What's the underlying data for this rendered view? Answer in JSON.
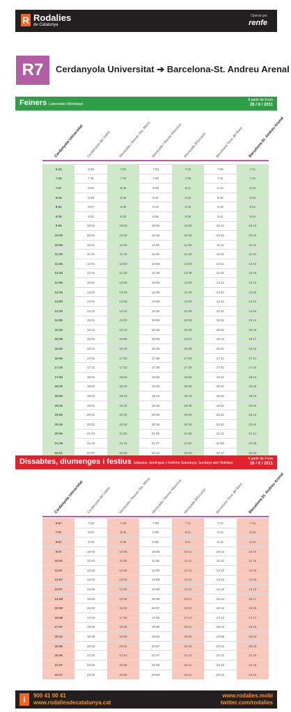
{
  "brand": {
    "name": "Rodalies",
    "sub": "de Catalunya",
    "logo_letter": "R",
    "operator_label": "Operat per",
    "operator": "renfe"
  },
  "route": {
    "code": "R7",
    "title": "Cerdanyola Universitat ➔ Barcelona-St. Andreu Arenal",
    "color": "#b25da6"
  },
  "stations": [
    "Cerdanyola Universitat",
    "Cerdanyola del Vallès",
    "Montcada i Reixac-Sta. Maria",
    "Montcada i Reixac-Manresa",
    "Montcada Bifurcació",
    "Barcelona-Torre del Baró",
    "Barcelona-St. Andreu Arenal"
  ],
  "weekday": {
    "title": "Feiners",
    "subtitle": "Laborables Weekdays",
    "from_label": "A partir de  From",
    "from_date": "26 / 6 / 2011",
    "color": "#2f9e47",
    "rows": [
      [
        "6:33",
        "6:38",
        "7:00",
        "7:03",
        "7:06",
        "7:08",
        "7:11"
      ],
      [
        "7:25",
        "7:31",
        "7:33",
        "7:36",
        "7:39",
        "7:41",
        "7:44"
      ],
      [
        "7:57",
        "8:02",
        "8:05",
        "8:08",
        "8:11",
        "8:13",
        "8:16"
      ],
      [
        "8:25",
        "8:30",
        "8:36",
        "8:41",
        "8:44",
        "8:46",
        "8:49"
      ],
      [
        "8:51",
        "8:57",
        "9:09",
        "9:13",
        "9:15",
        "9:18",
        "9:21"
      ],
      [
        "9:25",
        "9:31",
        "9:33",
        "9:36",
        "9:39",
        "9:41",
        "9:44"
      ],
      [
        "9:55",
        "10:01",
        "10:03",
        "10:06",
        "10:09",
        "10:11",
        "10:14"
      ],
      [
        "10:25",
        "10:31",
        "10:33",
        "10:36",
        "10:39",
        "10:41",
        "10:44"
      ],
      [
        "10:55",
        "11:01",
        "11:03",
        "11:06",
        "11:09",
        "11:11",
        "11:14"
      ],
      [
        "11:25",
        "11:31",
        "11:33",
        "11:36",
        "11:39",
        "11:41",
        "11:44"
      ],
      [
        "11:55",
        "12:01",
        "12:03",
        "12:06",
        "12:09",
        "12:11",
        "12:14"
      ],
      [
        "12:25",
        "12:31",
        "12:33",
        "12:36",
        "12:39",
        "12:41",
        "12:44"
      ],
      [
        "12:55",
        "13:01",
        "13:03",
        "13:06",
        "13:09",
        "13:11",
        "13:14"
      ],
      [
        "13:25",
        "13:31",
        "13:33",
        "13:36",
        "13:39",
        "13:41",
        "13:44"
      ],
      [
        "13:55",
        "14:01",
        "14:03",
        "14:06",
        "14:09",
        "14:11",
        "14:14"
      ],
      [
        "14:25",
        "14:31",
        "14:33",
        "14:36",
        "14:39",
        "14:41",
        "14:44"
      ],
      [
        "14:55",
        "15:01",
        "15:03",
        "15:06",
        "15:09",
        "15:11",
        "15:14"
      ],
      [
        "15:25",
        "15:31",
        "15:33",
        "15:36",
        "15:39",
        "15:41",
        "15:44"
      ],
      [
        "15:58",
        "16:04",
        "16:06",
        "16:09",
        "16:12",
        "16:14",
        "16:17"
      ],
      [
        "16:25",
        "16:31",
        "16:33",
        "16:36",
        "16:39",
        "16:41",
        "16:44"
      ],
      [
        "16:55",
        "17:01",
        "17:03",
        "17:06",
        "17:09",
        "17:11",
        "17:14"
      ],
      [
        "17:25",
        "17:31",
        "17:33",
        "17:36",
        "17:39",
        "17:41",
        "17:44"
      ],
      [
        "17:55",
        "18:01",
        "18:03",
        "18:06",
        "18:08",
        "18:11",
        "18:14"
      ],
      [
        "18:25",
        "18:31",
        "18:33",
        "18:36",
        "18:38",
        "18:41",
        "18:44"
      ],
      [
        "18:55",
        "19:01",
        "19:13",
        "19:16",
        "19:19",
        "19:21",
        "19:24"
      ],
      [
        "19:25",
        "19:31",
        "19:33",
        "19:36",
        "19:39",
        "19:41",
        "19:44"
      ],
      [
        "19:55",
        "20:01",
        "20:03",
        "20:06",
        "20:08",
        "20:11",
        "20:14"
      ],
      [
        "20:25",
        "20:31",
        "20:33",
        "20:36",
        "20:39",
        "20:41",
        "20:44"
      ],
      [
        "20:55",
        "21:01",
        "21:03",
        "21:06",
        "21:09",
        "21:11",
        "21:14"
      ],
      [
        "21:36",
        "21:42",
        "21:44",
        "21:47",
        "21:50",
        "21:52",
        "21:55"
      ],
      [
        "22:01",
        "22:07",
        "22:09",
        "22:12",
        "22:15",
        "22:17",
        "22:20"
      ],
      [
        "22:31",
        "22:37",
        "22:39",
        "22:42",
        "22:45",
        "22:47",
        "22:50"
      ]
    ]
  },
  "weekend": {
    "title": "Dissabtes, diumenges i festius",
    "subtitle": "Sábados, domingos y festivos  Saturdays, Sundays and Holidays",
    "from_label": "A partir de  From",
    "from_date": "26 / 6 / 2011",
    "color": "#e4202c",
    "rows": [
      [
        "6:57",
        "7:03",
        "7:05",
        "7:08",
        "7:11",
        "7:13",
        "7:16"
      ],
      [
        "7:57",
        "8:03",
        "8:05",
        "8:08",
        "8:11",
        "8:13",
        "8:16"
      ],
      [
        "8:57",
        "9:03",
        "9:05",
        "9:08",
        "9:11",
        "9:13",
        "9:16"
      ],
      [
        "9:57",
        "10:03",
        "10:05",
        "10:08",
        "10:11",
        "10:13",
        "10:16"
      ],
      [
        "10:57",
        "11:03",
        "11:05",
        "11:08",
        "11:11",
        "11:13",
        "11:16"
      ],
      [
        "11:57",
        "12:03",
        "12:05",
        "12:08",
        "12:11",
        "12:13",
        "12:16"
      ],
      [
        "12:57",
        "13:03",
        "13:05",
        "13:08",
        "13:11",
        "13:13",
        "13:16"
      ],
      [
        "13:57",
        "14:03",
        "14:05",
        "14:08",
        "14:11",
        "14:13",
        "14:16"
      ],
      [
        "14:58",
        "15:04",
        "15:06",
        "15:09",
        "15:12",
        "15:14",
        "15:17"
      ],
      [
        "15:58",
        "16:02",
        "16:04",
        "16:07",
        "16:10",
        "16:12",
        "16:15"
      ],
      [
        "16:58",
        "17:04",
        "17:06",
        "17:09",
        "17:12",
        "17:14",
        "17:17"
      ],
      [
        "17:57",
        "18:03",
        "18:05",
        "18:08",
        "18:11",
        "18:13",
        "18:16"
      ],
      [
        "18:42",
        "18:48",
        "18:50",
        "18:53",
        "18:56",
        "18:58",
        "19:02"
      ],
      [
        "19:56",
        "20:02",
        "20:04",
        "20:07",
        "20:10",
        "20:12",
        "20:15"
      ],
      [
        "20:56",
        "21:02",
        "21:04",
        "21:07",
        "21:10",
        "21:12",
        "21:15"
      ],
      [
        "21:57",
        "22:03",
        "22:05",
        "22:08",
        "22:11",
        "22:13",
        "22:16"
      ],
      [
        "22:57",
        "23:03",
        "23:05",
        "23:08",
        "23:11",
        "23:13",
        "23:16"
      ]
    ]
  },
  "cell_colors": {
    "green_even": "#cde9c8",
    "green_odd": "#ffffff",
    "red_even": "#f9c8bd",
    "red_odd": "#ffffff"
  },
  "footer": {
    "info_icon": "i",
    "phone": "900 41 00 41",
    "web": "www.rodaliesdecatalunya.cat",
    "mobile": "www.rodalies.mobi",
    "twitter": "twitter.com/rodalies"
  }
}
